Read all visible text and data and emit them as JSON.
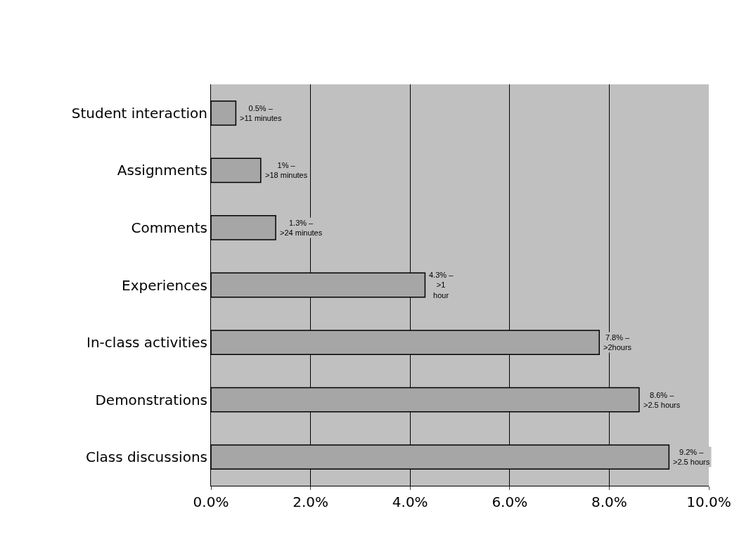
{
  "chart_data": {
    "type": "bar",
    "orientation": "horizontal",
    "categories": [
      "Student interaction",
      "Assignments",
      "Comments",
      "Experiences",
      "In-class activities",
      "Demonstrations",
      "Class discussions"
    ],
    "values": [
      0.5,
      1,
      1.3,
      4.3,
      7.8,
      8.6,
      9.2
    ],
    "value_labels": [
      "0.5% –\n>11 minutes",
      "1% –\n>18 minutes",
      "1.3% –\n>24 minutes",
      "4.3% –\n>1\nhour",
      "7.8% –\n>2hours",
      "8.6% –\n>2.5 hours",
      "9.2% –\n>2.5 hours"
    ],
    "color": "#a6a6a6",
    "xlim": [
      0,
      10
    ],
    "xticks": [
      {
        "value": 0,
        "label": "0.0%"
      },
      {
        "value": 2,
        "label": "2.0%"
      },
      {
        "value": 4,
        "label": "4.0%"
      },
      {
        "value": 6,
        "label": "6.0%"
      },
      {
        "value": 8,
        "label": "8.0%"
      },
      {
        "value": 10,
        "label": "10.0%"
      }
    ],
    "grid": "x",
    "legend": false
  }
}
